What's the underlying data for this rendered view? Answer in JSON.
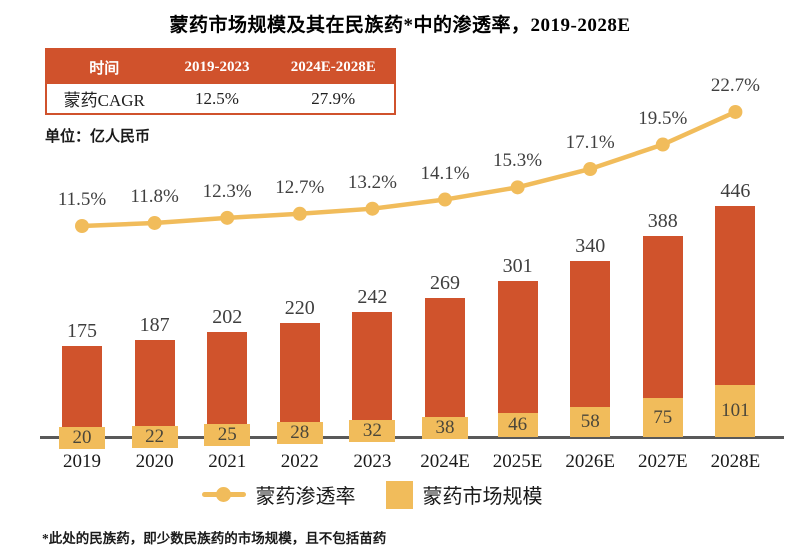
{
  "title": "蒙药市场规模及其在民族药*中的渗透率，2019-2028E",
  "cagr_table": {
    "headers": [
      "时间",
      "2019-2023",
      "2024E-2028E"
    ],
    "row": [
      "蒙药CAGR",
      "12.5%",
      "27.9%"
    ]
  },
  "unit_label": "单位：亿人民币",
  "legend": {
    "line_label": "蒙药渗透率",
    "bar_label": "蒙药市场规模"
  },
  "footnote": "*此处的民族药，即少数民族药的市场规模，且不包括苗药",
  "colors": {
    "red": "#d0532c",
    "yellow": "#f1bc5b",
    "axis": "#595959",
    "text": "#3f3f3f",
    "table_header_bg": "#d0522c"
  },
  "chart_data": {
    "type": "bar+line",
    "title": "蒙药市场规模及其在民族药*中的渗透率，2019-2028E",
    "value_unit": "亿人民币",
    "grid": false,
    "legend_position": "bottom",
    "categories": [
      "2019",
      "2020",
      "2021",
      "2022",
      "2023",
      "2024E",
      "2025E",
      "2026E",
      "2027E",
      "2028E"
    ],
    "bar_totals": [
      175,
      187,
      202,
      220,
      242,
      269,
      301,
      340,
      388,
      446
    ],
    "bar_bottom_segment": {
      "name": "蒙药市场规模",
      "color": "#f1bc5b",
      "values": [
        20,
        22,
        25,
        28,
        32,
        38,
        46,
        58,
        75,
        101
      ]
    },
    "line": {
      "name": "蒙药渗透率",
      "color": "#f1bc5b",
      "unit": "%",
      "values": [
        11.5,
        11.8,
        12.3,
        12.7,
        13.2,
        14.1,
        15.3,
        17.1,
        19.5,
        22.7
      ]
    }
  }
}
